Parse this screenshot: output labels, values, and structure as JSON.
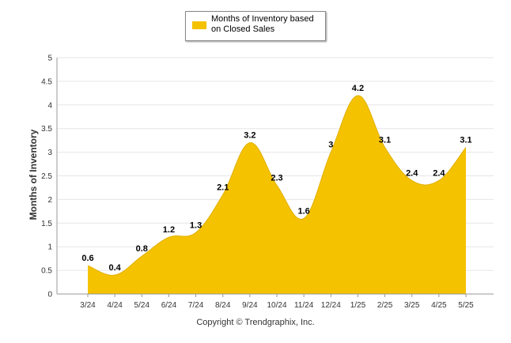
{
  "chart_data": {
    "type": "area",
    "categories": [
      "3/24",
      "4/24",
      "5/24",
      "6/24",
      "7/24",
      "8/24",
      "9/24",
      "10/24",
      "11/24",
      "12/24",
      "1/25",
      "2/25",
      "3/25",
      "4/25",
      "5/25"
    ],
    "series": [
      {
        "name": "Months of Inventory based on Closed Sales",
        "values": [
          0.6,
          0.4,
          0.8,
          1.2,
          1.3,
          2.1,
          3.2,
          2.3,
          1.6,
          3,
          4.2,
          3.1,
          2.4,
          2.4,
          3.1
        ],
        "color": "#F5C200"
      }
    ],
    "ylabel": "Months of Inventory",
    "ylim": [
      0,
      5
    ],
    "yticks": [
      "0",
      "0.5",
      "1",
      "1.5",
      "2",
      "2.5",
      "3",
      "3.5",
      "4",
      "4.5",
      "5"
    ],
    "grid": true,
    "legend": "top-center"
  },
  "footer": {
    "copyright": "Copyright © Trendgraphix, Inc."
  }
}
